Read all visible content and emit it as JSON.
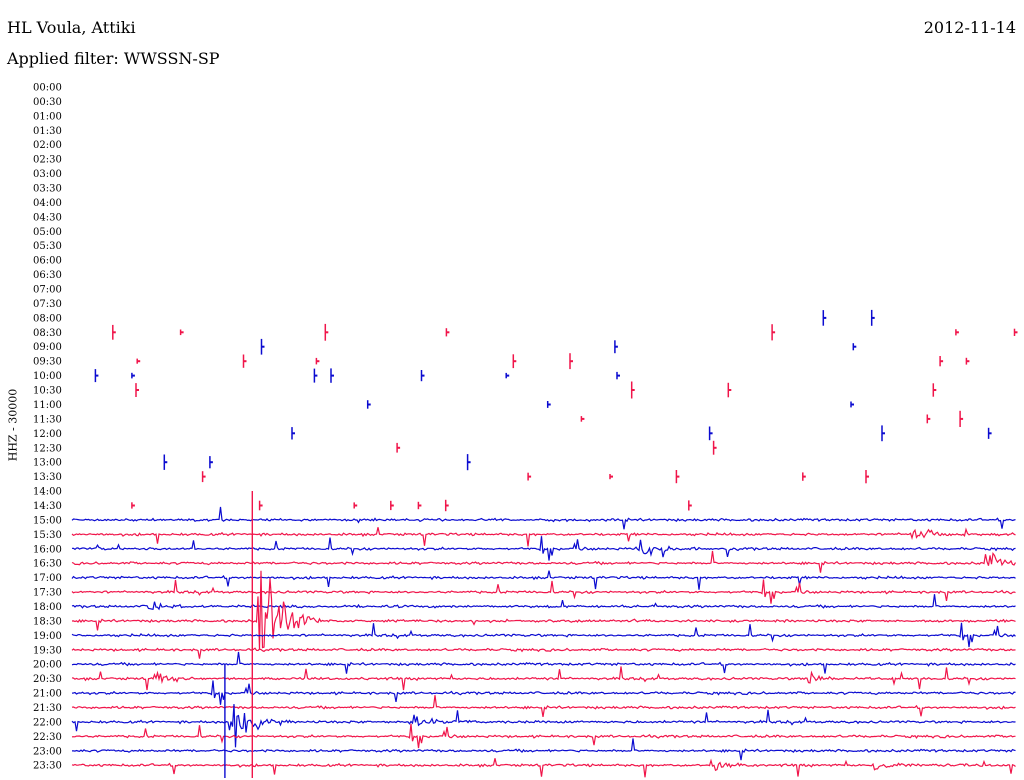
{
  "header": {
    "station": "HL Voula, Attiki",
    "date": "2012-11-14",
    "filter": "Applied filter: WWSSN-SP",
    "channel": "HHZ - 30000"
  },
  "colors": {
    "trace_a": "#0b0bd0",
    "trace_b": "#f0154a",
    "background": "#ffffff",
    "text": "#000000"
  },
  "chart_data": {
    "type": "line",
    "title": "HL Voula, Attiki",
    "subtitle": "Applied filter: WWSSN-SP",
    "ylabel": "HHZ - 30000",
    "date": "2012-11-14",
    "row_labels": [
      "00:00",
      "00:30",
      "01:00",
      "01:30",
      "02:00",
      "02:30",
      "03:00",
      "03:30",
      "04:00",
      "04:30",
      "05:00",
      "05:30",
      "06:00",
      "06:30",
      "07:00",
      "07:30",
      "08:00",
      "08:30",
      "09:00",
      "09:30",
      "10:00",
      "10:30",
      "11:00",
      "11:30",
      "12:00",
      "12:30",
      "13:00",
      "13:30",
      "14:00",
      "14:30",
      "15:00",
      "15:30",
      "16:00",
      "16:30",
      "17:00",
      "17:30",
      "18:00",
      "18:30",
      "19:00",
      "19:30",
      "20:00",
      "20:30",
      "21:00",
      "21:30",
      "22:00",
      "22:30",
      "23:00",
      "23:30"
    ],
    "first_row_with_trace": "08:00",
    "first_continuous_row": "15:00",
    "gap_rows_between": [
      "14:00"
    ],
    "alternating_colors": [
      "blue",
      "red"
    ],
    "events": [
      {
        "row": "18:30",
        "x_fraction": 0.2,
        "amplitude": "very large",
        "note": "large local event spanning multiple rows"
      },
      {
        "row": "22:00",
        "x_fraction": 0.17,
        "amplitude": "large"
      },
      {
        "row": "22:00",
        "x_fraction": 0.36,
        "amplitude": "medium"
      },
      {
        "row": "16:00",
        "x_fraction": 0.6,
        "amplitude": "medium"
      },
      {
        "row": "15:30",
        "x_fraction": 0.89,
        "amplitude": "medium"
      },
      {
        "row": "16:30",
        "x_fraction": 0.97,
        "amplitude": "medium"
      },
      {
        "row": "18:00",
        "x_fraction": 0.08,
        "amplitude": "small"
      },
      {
        "row": "20:30",
        "x_fraction": 0.09,
        "amplitude": "small"
      },
      {
        "row": "20:30",
        "x_fraction": 0.78,
        "amplitude": "small"
      },
      {
        "row": "23:30",
        "x_fraction": 0.85,
        "amplitude": "small"
      },
      {
        "row": "23:30",
        "x_fraction": 0.68,
        "amplitude": "small"
      }
    ]
  }
}
